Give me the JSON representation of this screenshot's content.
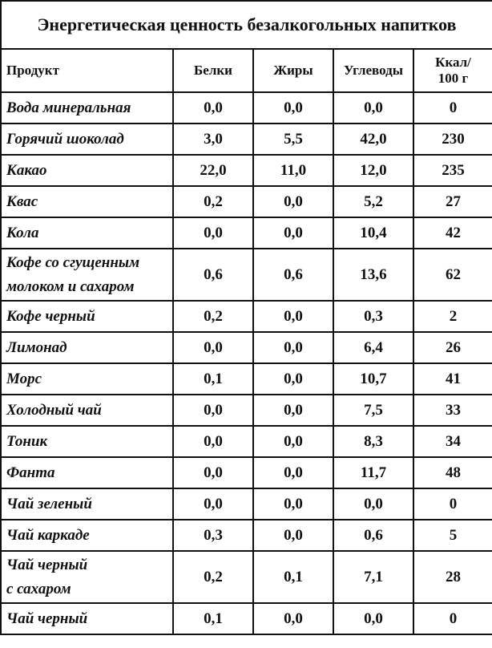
{
  "table": {
    "title": "Энергетическая ценность безалкогольных напитков",
    "header": [
      "Продукт",
      "Белки",
      "Жиры",
      "Углеводы",
      "Ккал/\n100 г"
    ],
    "rows": [
      [
        "Вода минеральная",
        "0,0",
        "0,0",
        "0,0",
        "0"
      ],
      [
        "Горячий шоколад",
        "3,0",
        "5,5",
        "42,0",
        "230"
      ],
      [
        "Какао",
        "22,0",
        "11,0",
        "12,0",
        "235"
      ],
      [
        "Квас",
        "0,2",
        "0,0",
        "5,2",
        "27"
      ],
      [
        "Кола",
        "0,0",
        "0,0",
        "10,4",
        "42"
      ],
      [
        "Кофе со сгущенным\nмолоком и сахаром",
        "0,6",
        "0,6",
        "13,6",
        "62"
      ],
      [
        "Кофе черный",
        "0,2",
        "0,0",
        "0,3",
        "2"
      ],
      [
        "Лимонад",
        "0,0",
        "0,0",
        "6,4",
        "26"
      ],
      [
        "Морс",
        "0,1",
        "0,0",
        "10,7",
        "41"
      ],
      [
        "Холодный чай",
        "0,0",
        "0,0",
        "7,5",
        "33"
      ],
      [
        "Тоник",
        "0,0",
        "0,0",
        "8,3",
        "34"
      ],
      [
        "Фанта",
        "0,0",
        "0,0",
        "11,7",
        "48"
      ],
      [
        "Чай зеленый",
        "0,0",
        "0,0",
        "0,0",
        "0"
      ],
      [
        "Чай каркаде",
        "0,3",
        "0,0",
        "0,6",
        "5"
      ],
      [
        "Чай черный\nс сахаром",
        "0,2",
        "0,1",
        "7,1",
        "28"
      ],
      [
        "Чай черный",
        "0,1",
        "0,0",
        "0,0",
        "0"
      ]
    ]
  }
}
